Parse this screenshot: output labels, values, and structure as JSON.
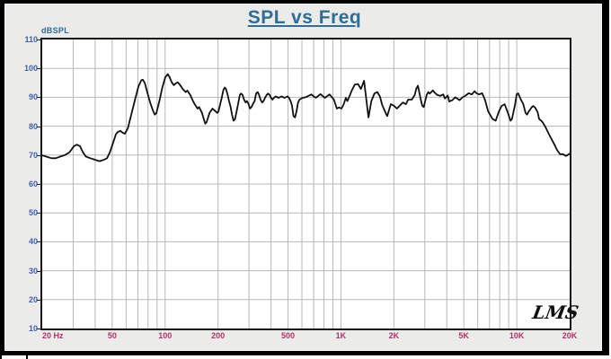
{
  "header": {
    "title": "SPL vs Freq"
  },
  "axes": {
    "y_unit_label": "dBSPL",
    "y_ticks": [
      110,
      100,
      90,
      80,
      70,
      60,
      50,
      40,
      30,
      20,
      10
    ],
    "y_gridlines": [
      100,
      90,
      80,
      70,
      60,
      50,
      40,
      30,
      20
    ],
    "x_tick_labels": [
      {
        "label": "20 Hz",
        "freq": 20
      },
      {
        "label": "50",
        "freq": 50
      },
      {
        "label": "100",
        "freq": 100
      },
      {
        "label": "200",
        "freq": 200
      },
      {
        "label": "500",
        "freq": 500
      },
      {
        "label": "1K",
        "freq": 1000
      },
      {
        "label": "2K",
        "freq": 2000
      },
      {
        "label": "5K",
        "freq": 5000
      },
      {
        "label": "10K",
        "freq": 10000
      },
      {
        "label": "20K",
        "freq": 20000
      }
    ],
    "x_gridlines": [
      30,
      40,
      50,
      60,
      70,
      80,
      90,
      100,
      200,
      300,
      400,
      500,
      600,
      700,
      800,
      900,
      1000,
      2000,
      3000,
      4000,
      5000,
      6000,
      7000,
      8000,
      9000,
      10000
    ]
  },
  "signature": "LMS",
  "colors": {
    "title": "#2e6e96",
    "y_label": "#3f5fae",
    "x_label": "#b2306a",
    "grid": "#b7b7b7",
    "curve": "#111111",
    "frame": "#000000",
    "panel_bg": "#ebebe9",
    "plot_bg": "#ffffff"
  },
  "chart_data": {
    "type": "line",
    "title": "SPL vs Freq",
    "ylabel": "dBSPL",
    "x_unit": "Hz",
    "x_scale": "log",
    "xlim": [
      20,
      20000
    ],
    "ylim": [
      10,
      110
    ],
    "grid": true,
    "legend": false,
    "series": [
      {
        "name": "SPL",
        "points": [
          [
            20,
            69.9
          ],
          [
            21,
            69.5
          ],
          [
            22.6,
            68.9
          ],
          [
            23.9,
            68.9
          ],
          [
            25.4,
            69.5
          ],
          [
            26.9,
            70.0
          ],
          [
            28.6,
            71.0
          ],
          [
            30.3,
            73.1
          ],
          [
            31.5,
            73.6
          ],
          [
            32.8,
            73.1
          ],
          [
            34.1,
            71.0
          ],
          [
            35.4,
            69.5
          ],
          [
            37.6,
            68.9
          ],
          [
            39.9,
            68.4
          ],
          [
            42.3,
            67.9
          ],
          [
            44.9,
            68.4
          ],
          [
            46.7,
            68.9
          ],
          [
            48.5,
            71.0
          ],
          [
            50.5,
            74.1
          ],
          [
            52.5,
            77.2
          ],
          [
            53.9,
            78.0
          ],
          [
            55.7,
            78.4
          ],
          [
            57.5,
            77.7
          ],
          [
            59.0,
            77.4
          ],
          [
            61.4,
            79.3
          ],
          [
            62.6,
            81.4
          ],
          [
            65.1,
            85.5
          ],
          [
            67.8,
            89.7
          ],
          [
            70.5,
            93.8
          ],
          [
            73.2,
            95.9
          ],
          [
            74.7,
            96.1
          ],
          [
            76.7,
            94.9
          ],
          [
            79.2,
            91.7
          ],
          [
            82.3,
            88.1
          ],
          [
            85.1,
            85.5
          ],
          [
            87.4,
            84.0
          ],
          [
            89.1,
            84.5
          ],
          [
            92.7,
            88.6
          ],
          [
            96.4,
            93.3
          ],
          [
            100.2,
            96.9
          ],
          [
            103.5,
            98.0
          ],
          [
            106,
            97.0
          ],
          [
            109,
            95.2
          ],
          [
            112,
            94.2
          ],
          [
            115,
            94.8
          ],
          [
            118,
            95.2
          ],
          [
            121,
            94.4
          ],
          [
            126,
            92.9
          ],
          [
            131,
            91.8
          ],
          [
            134,
            92.3
          ],
          [
            139,
            90.8
          ],
          [
            144,
            88.7
          ],
          [
            147,
            87.7
          ],
          [
            153,
            86.1
          ],
          [
            156,
            86.6
          ],
          [
            162,
            84.6
          ],
          [
            166,
            82.5
          ],
          [
            169,
            80.9
          ],
          [
            172,
            81.4
          ],
          [
            179,
            84.6
          ],
          [
            186,
            86.1
          ],
          [
            190,
            85.6
          ],
          [
            198,
            84.6
          ],
          [
            201,
            85.1
          ],
          [
            210,
            89.8
          ],
          [
            214,
            92.3
          ],
          [
            218,
            93.4
          ],
          [
            222,
            92.9
          ],
          [
            227,
            90.8
          ],
          [
            231,
            88.7
          ],
          [
            236,
            86.6
          ],
          [
            240,
            84.0
          ],
          [
            245,
            81.9
          ],
          [
            250,
            82.5
          ],
          [
            260,
            87.7
          ],
          [
            266,
            90.8
          ],
          [
            270,
            91.3
          ],
          [
            276,
            90.8
          ],
          [
            281,
            89.2
          ],
          [
            287,
            88.2
          ],
          [
            292,
            88.7
          ],
          [
            298,
            87.7
          ],
          [
            304,
            86.1
          ],
          [
            310,
            86.6
          ],
          [
            316,
            87.7
          ],
          [
            323,
            88.7
          ],
          [
            329,
            91.3
          ],
          [
            336,
            91.8
          ],
          [
            342,
            90.8
          ],
          [
            349,
            89.2
          ],
          [
            356,
            88.2
          ],
          [
            363,
            88.7
          ],
          [
            370,
            89.8
          ],
          [
            378,
            90.8
          ],
          [
            385,
            91.3
          ],
          [
            393,
            90.8
          ],
          [
            400,
            89.8
          ],
          [
            408,
            89.2
          ],
          [
            416,
            89.8
          ],
          [
            425,
            90.3
          ],
          [
            442,
            89.8
          ],
          [
            459,
            90.3
          ],
          [
            478,
            89.8
          ],
          [
            497,
            90.3
          ],
          [
            507,
            89.8
          ],
          [
            517,
            88.7
          ],
          [
            527,
            87.1
          ],
          [
            537,
            83.5
          ],
          [
            548,
            83.0
          ],
          [
            559,
            85.1
          ],
          [
            570,
            88.2
          ],
          [
            581,
            89.2
          ],
          [
            605,
            89.8
          ],
          [
            628,
            90.0
          ],
          [
            650,
            90.4
          ],
          [
            679,
            91.0
          ],
          [
            700,
            90.3
          ],
          [
            721,
            89.8
          ],
          [
            743,
            90.5
          ],
          [
            765,
            91.1
          ],
          [
            788,
            90.4
          ],
          [
            811,
            89.8
          ],
          [
            835,
            90.4
          ],
          [
            861,
            91.0
          ],
          [
            912,
            89.2
          ],
          [
            948,
            86.1
          ],
          [
            975,
            86.5
          ],
          [
            1007,
            86.1
          ],
          [
            1035,
            87.5
          ],
          [
            1067,
            89.8
          ],
          [
            1088,
            88.7
          ],
          [
            1120,
            90.5
          ],
          [
            1154,
            92.4
          ],
          [
            1200,
            94.4
          ],
          [
            1250,
            94.6
          ],
          [
            1300,
            92.9
          ],
          [
            1355,
            95.7
          ],
          [
            1435,
            83.0
          ],
          [
            1490,
            88.7
          ],
          [
            1550,
            91.3
          ],
          [
            1610,
            91.8
          ],
          [
            1665,
            90.3
          ],
          [
            1720,
            87.2
          ],
          [
            1810,
            84.1
          ],
          [
            1835,
            83.5
          ],
          [
            1920,
            87.6
          ],
          [
            2000,
            87.1
          ],
          [
            2080,
            86.1
          ],
          [
            2160,
            87.1
          ],
          [
            2250,
            88.2
          ],
          [
            2340,
            87.6
          ],
          [
            2410,
            89.2
          ],
          [
            2530,
            89.2
          ],
          [
            2630,
            90.8
          ],
          [
            2680,
            92.9
          ],
          [
            2740,
            94.0
          ],
          [
            2845,
            89.2
          ],
          [
            2900,
            87.1
          ],
          [
            2960,
            86.6
          ],
          [
            3075,
            90.8
          ],
          [
            3140,
            91.8
          ],
          [
            3200,
            91.3
          ],
          [
            3330,
            92.4
          ],
          [
            3390,
            91.8
          ],
          [
            3530,
            90.8
          ],
          [
            3675,
            90.5
          ],
          [
            3820,
            91.0
          ],
          [
            3900,
            89.6
          ],
          [
            4050,
            90.6
          ],
          [
            4130,
            88.5
          ],
          [
            4300,
            89.0
          ],
          [
            4470,
            90.0
          ],
          [
            4730,
            89.0
          ],
          [
            4920,
            90.0
          ],
          [
            5120,
            90.6
          ],
          [
            5330,
            91.4
          ],
          [
            5550,
            91.0
          ],
          [
            5760,
            92.1
          ],
          [
            5900,
            91.4
          ],
          [
            6110,
            91.0
          ],
          [
            6360,
            91.4
          ],
          [
            6610,
            89.0
          ],
          [
            6870,
            85.2
          ],
          [
            7290,
            82.5
          ],
          [
            7590,
            81.9
          ],
          [
            7890,
            84.9
          ],
          [
            8200,
            87.0
          ],
          [
            8530,
            87.6
          ],
          [
            8870,
            84.9
          ],
          [
            9225,
            81.9
          ],
          [
            9400,
            82.5
          ],
          [
            9790,
            87.6
          ],
          [
            9990,
            91.0
          ],
          [
            10180,
            91.4
          ],
          [
            10590,
            89.0
          ],
          [
            10900,
            87.6
          ],
          [
            11225,
            84.6
          ],
          [
            11450,
            84.0
          ],
          [
            11650,
            84.9
          ],
          [
            12150,
            86.5
          ],
          [
            12390,
            87.0
          ],
          [
            12700,
            86.5
          ],
          [
            13140,
            84.9
          ],
          [
            13400,
            82.5
          ],
          [
            13930,
            81.6
          ],
          [
            14490,
            80.0
          ],
          [
            15070,
            77.9
          ],
          [
            15670,
            75.8
          ],
          [
            16290,
            73.9
          ],
          [
            16940,
            71.8
          ],
          [
            17610,
            70.3
          ],
          [
            18300,
            70.3
          ],
          [
            19050,
            69.7
          ],
          [
            19800,
            70.3
          ],
          [
            20000,
            70.5
          ]
        ]
      }
    ]
  }
}
